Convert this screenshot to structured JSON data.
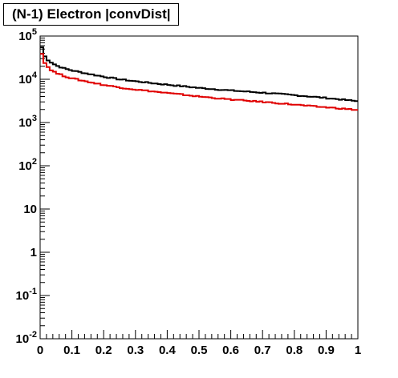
{
  "chart_data": {
    "type": "line",
    "title": "(N-1) Electron |convDist|",
    "xlabel": "",
    "ylabel": "",
    "xlim": [
      0,
      1
    ],
    "ylim": [
      0.01,
      100000
    ],
    "y_scale": "log",
    "grid": false,
    "x_ticks": [
      "0",
      "0.1",
      "0.2",
      "0.3",
      "0.4",
      "0.5",
      "0.6",
      "0.7",
      "0.8",
      "0.9",
      "1"
    ],
    "y_ticks": [
      {
        "base": "10",
        "exp": "-2"
      },
      {
        "base": "10",
        "exp": "-1"
      },
      {
        "base": "1",
        "exp": ""
      },
      {
        "base": "10",
        "exp": ""
      },
      {
        "base": "10",
        "exp": "2"
      },
      {
        "base": "10",
        "exp": "3"
      },
      {
        "base": "10",
        "exp": "4"
      },
      {
        "base": "10",
        "exp": "5"
      }
    ],
    "x": [
      0.0,
      0.005,
      0.01,
      0.02,
      0.03,
      0.05,
      0.075,
      0.1,
      0.15,
      0.2,
      0.25,
      0.3,
      0.35,
      0.4,
      0.45,
      0.5,
      0.55,
      0.6,
      0.65,
      0.7,
      0.75,
      0.8,
      0.85,
      0.9,
      0.95,
      1.0
    ],
    "series": [
      {
        "color": "#000000",
        "values": [
          80000,
          55000,
          38000,
          30000,
          26000,
          21000,
          18000,
          16000,
          13500,
          11500,
          10000,
          9000,
          8200,
          7500,
          6900,
          6300,
          5900,
          5500,
          5200,
          4900,
          4600,
          4300,
          4000,
          3700,
          3400,
          3100
        ]
      },
      {
        "color": "#e00000",
        "values": [
          60000,
          40000,
          27000,
          21000,
          17500,
          14000,
          12000,
          10500,
          8800,
          7400,
          6500,
          5800,
          5300,
          4800,
          4400,
          4000,
          3700,
          3400,
          3200,
          3000,
          2800,
          2600,
          2400,
          2250,
          2100,
          1950
        ]
      }
    ]
  }
}
